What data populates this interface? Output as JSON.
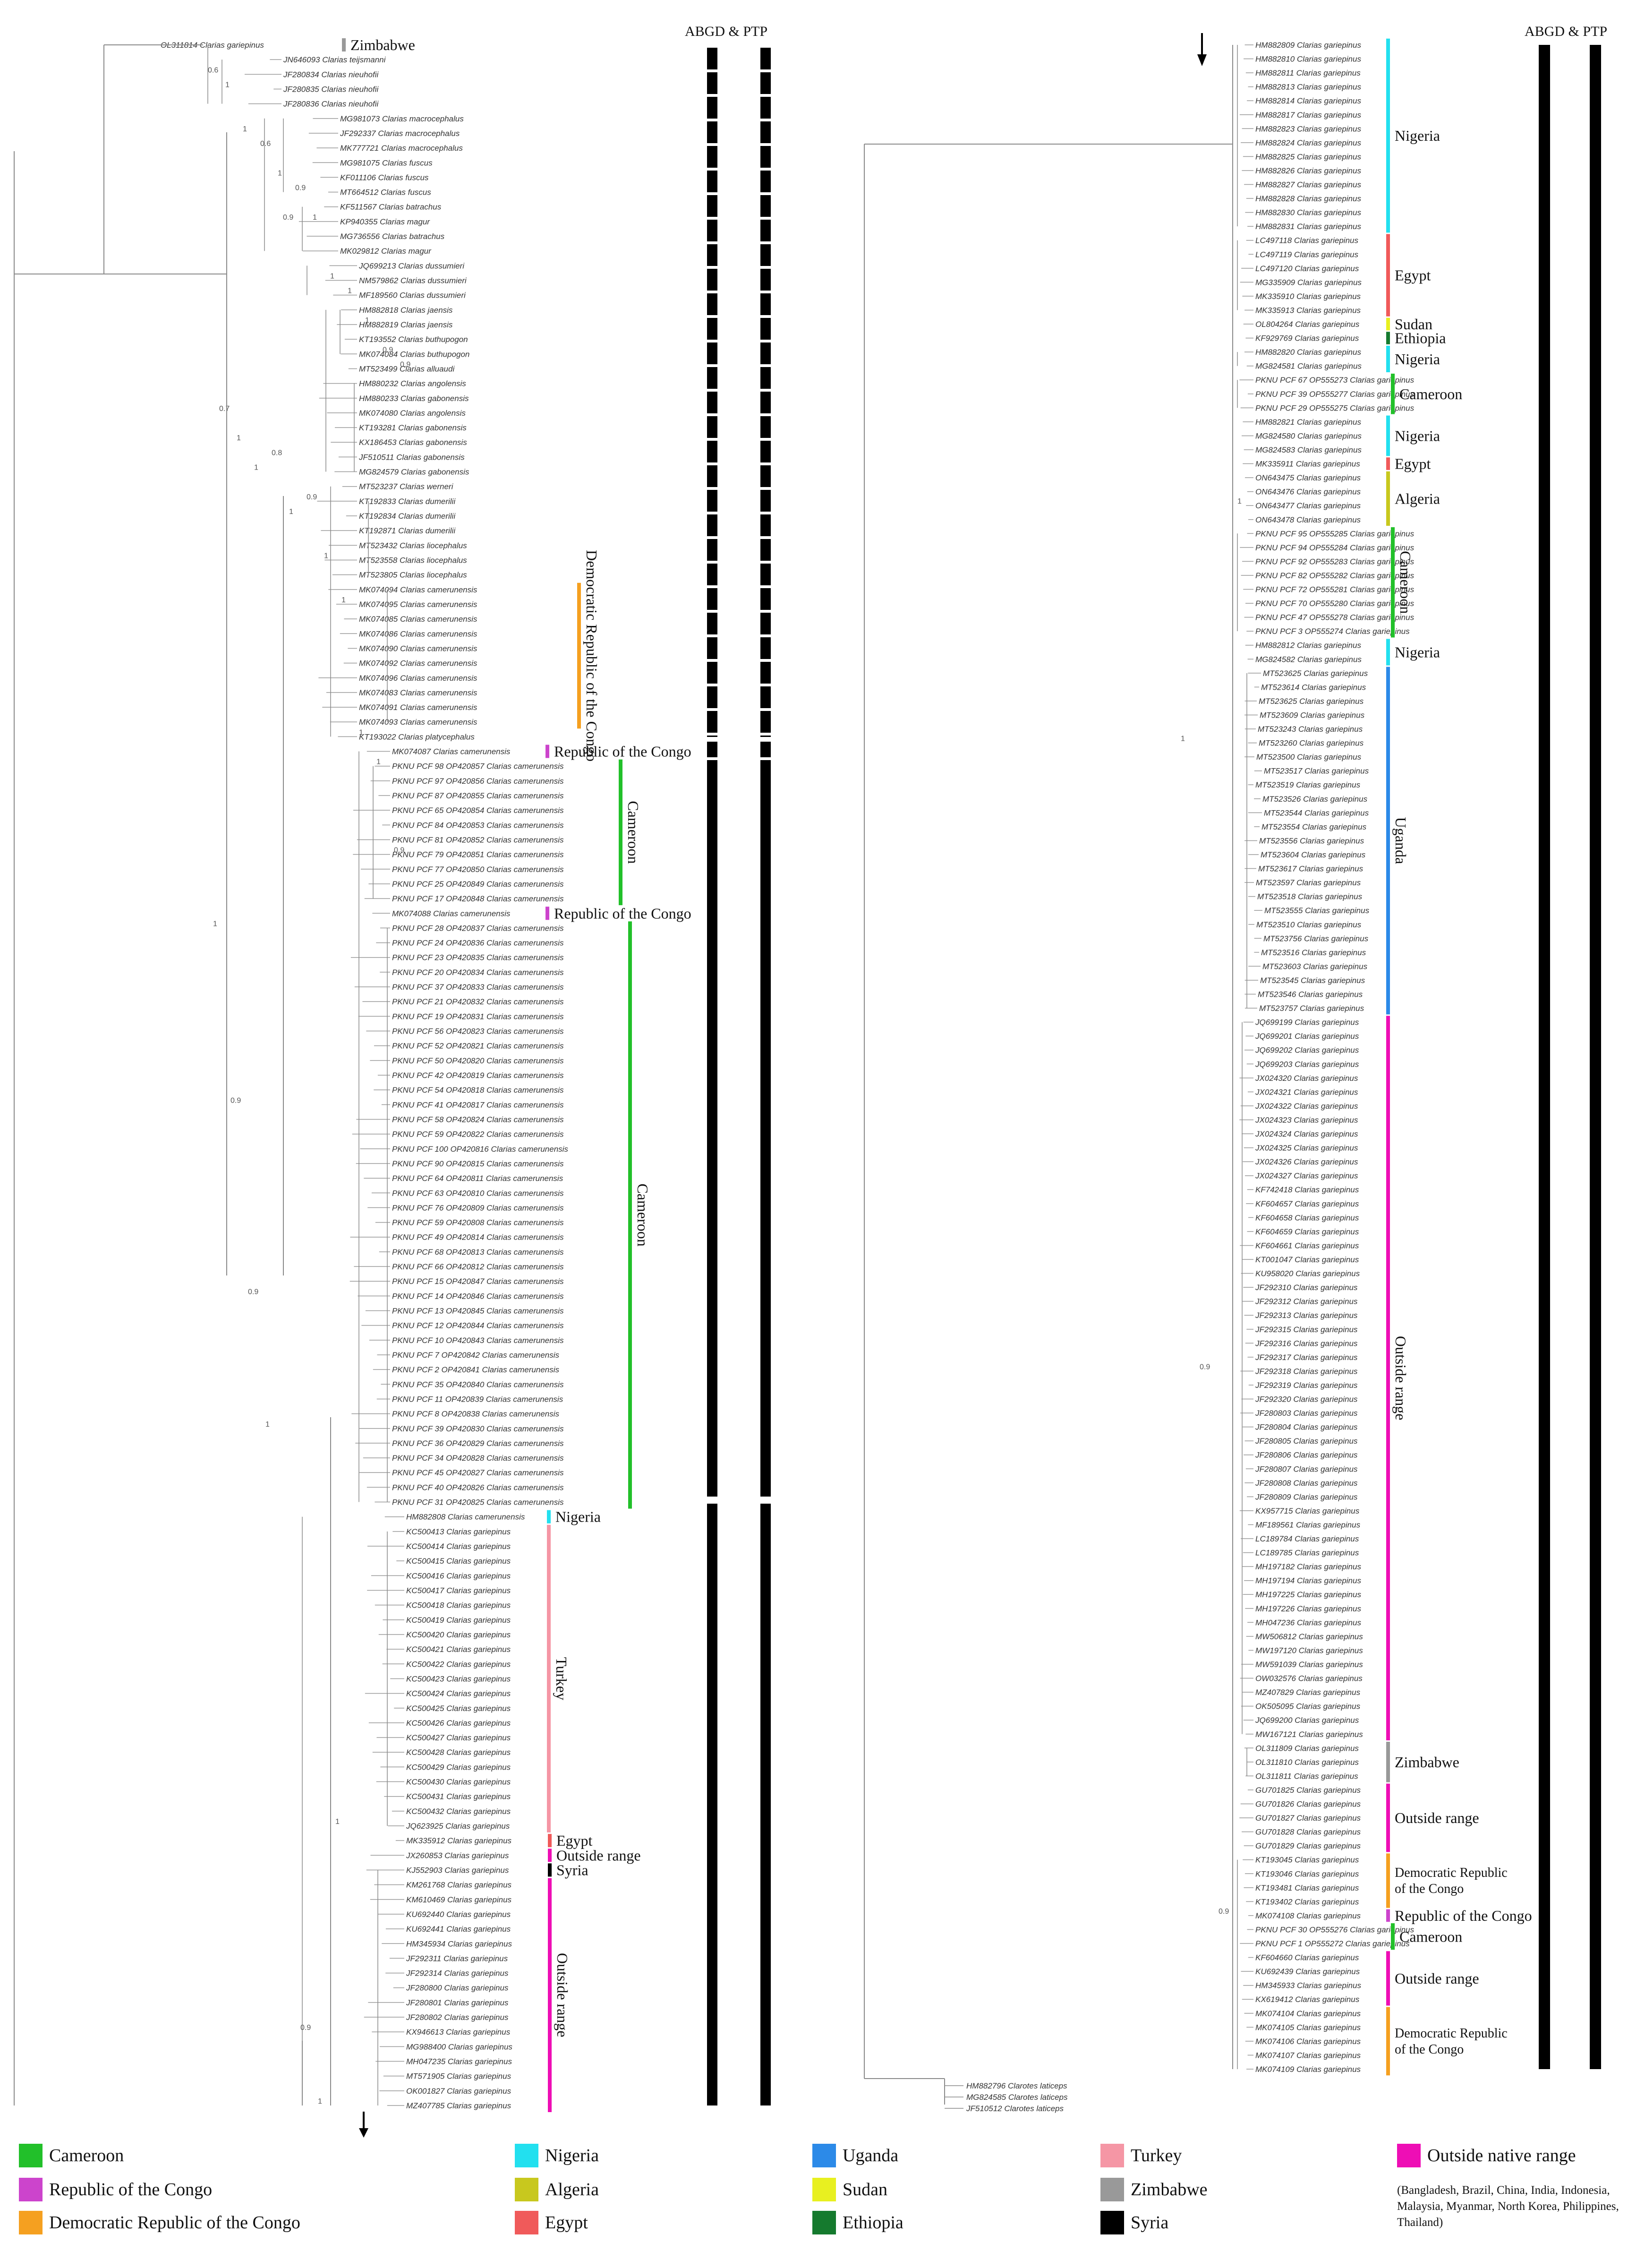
{
  "header": {
    "left": "ABGD & PTP",
    "right": "ABGD & PTP"
  },
  "colors": {
    "Cameroon": "#22c02a",
    "Republic of the Congo": "#cc44cc",
    "Democratic Republic of the Congo": "#f5a020",
    "Nigeria": "#22e0ef",
    "Algeria": "#c8c81e",
    "Egypt": "#f05a5a",
    "Uganda": "#2c8ae8",
    "Sudan": "#e8f020",
    "Ethiopia": "#157a2e",
    "Turkey": "#f596a5",
    "Zimbabwe": "#999999",
    "Syria": "#000000",
    "Outside range": "#ee0eb5"
  },
  "legend": {
    "items": [
      {
        "label": "Cameroon",
        "color": "#22c02a"
      },
      {
        "label": "Republic of the Congo",
        "color": "#cc44cc"
      },
      {
        "label": "Democratic Republic of the Congo",
        "color": "#f5a020"
      },
      {
        "label": "Nigeria",
        "color": "#22e0ef"
      },
      {
        "label": "Algeria",
        "color": "#c8c81e"
      },
      {
        "label": "Egypt",
        "color": "#f05a5a"
      },
      {
        "label": "Uganda",
        "color": "#2c8ae8"
      },
      {
        "label": "Sudan",
        "color": "#e8f020"
      },
      {
        "label": "Ethiopia",
        "color": "#157a2e"
      },
      {
        "label": "Turkey",
        "color": "#f596a5"
      },
      {
        "label": "Zimbabwe",
        "color": "#999999"
      },
      {
        "label": "Syria",
        "color": "#000000"
      },
      {
        "label": "Outside native range",
        "color": "#ee0eb5"
      }
    ],
    "note": "(Bangladesh, Brazil, China, India, Indonesia, Malaysia, Myanmar, North Korea, Philippines, Thailand)"
  },
  "left_panel": {
    "tips": [
      "OL311814 Clarias gariepinus",
      "JN646093 Clarias teijsmanni",
      "JF280834 Clarias nieuhofii",
      "JF280835 Clarias nieuhofii",
      "JF280836 Clarias nieuhofii",
      "MG981073 Clarias macrocephalus",
      "JF292337 Clarias macrocephalus",
      "MK777721 Clarias macrocephalus",
      "MG981075 Clarias fuscus",
      "KF011106 Clarias fuscus",
      "MT664512 Clarias fuscus",
      "KF511567 Clarias batrachus",
      "KP940355 Clarias magur",
      "MG736556 Clarias batrachus",
      "MK029812 Clarias magur",
      "JQ699213 Clarias dussumieri",
      "NM579862 Clarias dussumieri",
      "MF189560 Clarias dussumieri",
      "HM882818 Clarias jaensis",
      "HM882819 Clarias jaensis",
      "KT193552 Clarias buthupogon",
      "MK074084 Clarias buthupogon",
      "MT523499 Clarias alluaudi",
      "HM880232 Clarias angolensis",
      "HM880233 Clarias gabonensis",
      "MK074080 Clarias angolensis",
      "KT193281 Clarias gabonensis",
      "KX186453 Clarias gabonensis",
      "JF510511 Clarias gabonensis",
      "MG824579 Clarias gabonensis",
      "MT523237 Clarias werneri",
      "KT192833 Clarias dumerilii",
      "KT192834 Clarias dumerilii",
      "KT192871 Clarias dumerilii",
      "MT523432 Clarias liocephalus",
      "MT523558 Clarias liocephalus",
      "MT523805 Clarias liocephalus",
      "MK074094 Clarias camerunensis",
      "MK074095 Clarias camerunensis",
      "MK074085 Clarias camerunensis",
      "MK074086 Clarias camerunensis",
      "MK074090 Clarias camerunensis",
      "MK074092 Clarias camerunensis",
      "MK074096 Clarias camerunensis",
      "MK074083 Clarias camerunensis",
      "MK074091 Clarias camerunensis",
      "MK074093 Clarias camerunensis",
      "KT193022 Clarias platycephalus",
      "MK074087 Clarias camerunensis",
      "PKNU PCF 98 OP420857 Clarias camerunensis",
      "PKNU PCF 97 OP420856 Clarias camerunensis",
      "PKNU PCF 87 OP420855 Clarias camerunensis",
      "PKNU PCF 65 OP420854 Clarias camerunensis",
      "PKNU PCF 84 OP420853 Clarias camerunensis",
      "PKNU PCF 81 OP420852 Clarias camerunensis",
      "PKNU PCF 79 OP420851 Clarias camerunensis",
      "PKNU PCF 77 OP420850 Clarias camerunensis",
      "PKNU PCF 25 OP420849 Clarias camerunensis",
      "PKNU PCF 17 OP420848 Clarias camerunensis",
      "MK074088 Clarias camerunensis",
      "PKNU PCF 28 OP420837 Clarias camerunensis",
      "PKNU PCF 24 OP420836 Clarias camerunensis",
      "PKNU PCF 23 OP420835 Clarias camerunensis",
      "PKNU PCF 20 OP420834 Clarias camerunensis",
      "PKNU PCF 37 OP420833 Clarias camerunensis",
      "PKNU PCF 21 OP420832 Clarias camerunensis",
      "PKNU PCF 19 OP420831 Clarias camerunensis",
      "PKNU PCF 56 OP420823 Clarias camerunensis",
      "PKNU PCF 52 OP420821 Clarias camerunensis",
      "PKNU PCF 50 OP420820 Clarias camerunensis",
      "PKNU PCF 42 OP420819 Clarias camerunensis",
      "PKNU PCF 54 OP420818 Clarias camerunensis",
      "PKNU PCF 41 OP420817 Clarias camerunensis",
      "PKNU PCF 58 OP420824 Clarias camerunensis",
      "PKNU PCF 59 OP420822 Clarias camerunensis",
      "PKNU PCF 100 OP420816 Clarias camerunensis",
      "PKNU PCF 90 OP420815 Clarias camerunensis",
      "PKNU PCF 64 OP420811 Clarias camerunensis",
      "PKNU PCF 63 OP420810 Clarias camerunensis",
      "PKNU PCF 76 OP420809 Clarias camerunensis",
      "PKNU PCF 59 OP420808 Clarias camerunensis",
      "PKNU PCF 49 OP420814 Clarias camerunensis",
      "PKNU PCF 68 OP420813 Clarias camerunensis",
      "PKNU PCF 66 OP420812 Clarias camerunensis",
      "PKNU PCF 15 OP420847 Clarias camerunensis",
      "PKNU PCF 14 OP420846 Clarias camerunensis",
      "PKNU PCF 13 OP420845 Clarias camerunensis",
      "PKNU PCF 12 OP420844 Clarias camerunensis",
      "PKNU PCF 10 OP420843 Clarias camerunensis",
      "PKNU PCF 7 OP420842 Clarias camerunensis",
      "PKNU PCF 2 OP420841 Clarias camerunensis",
      "PKNU PCF 35 OP420840 Clarias camerunensis",
      "PKNU PCF 11 OP420839 Clarias camerunensis",
      "PKNU PCF 8 OP420838 Clarias camerunensis",
      "PKNU PCF 39 OP420830 Clarias camerunensis",
      "PKNU PCF 36 OP420829 Clarias camerunensis",
      "PKNU PCF 34 OP420828 Clarias camerunensis",
      "PKNU PCF 45 OP420827 Clarias camerunensis",
      "PKNU PCF 40 OP420826 Clarias camerunensis",
      "PKNU PCF 31 OP420825 Clarias camerunensis",
      "HM882808 Clarias camerunensis",
      "KC500413 Clarias gariepinus",
      "KC500414 Clarias gariepinus",
      "KC500415 Clarias gariepinus",
      "KC500416 Clarias gariepinus",
      "KC500417 Clarias gariepinus",
      "KC500418 Clarias gariepinus",
      "KC500419 Clarias gariepinus",
      "KC500420 Clarias gariepinus",
      "KC500421 Clarias gariepinus",
      "KC500422 Clarias gariepinus",
      "KC500423 Clarias gariepinus",
      "KC500424 Clarias gariepinus",
      "KC500425 Clarias gariepinus",
      "KC500426 Clarias gariepinus",
      "KC500427 Clarias gariepinus",
      "KC500428 Clarias gariepinus",
      "KC500429 Clarias gariepinus",
      "KC500430 Clarias gariepinus",
      "KC500431 Clarias gariepinus",
      "KC500432 Clarias gariepinus",
      "JQ623925 Clarias gariepinus",
      "MK335912 Clarias gariepinus",
      "JX260853 Clarias gariepinus",
      "KJ552903 Clarias gariepinus",
      "KM261768 Clarias gariepinus",
      "KM610469 Clarias gariepinus",
      "KU692440 Clarias gariepinus",
      "KU692441 Clarias gariepinus",
      "HM345934 Clarias gariepinus",
      "JF292311 Clarias gariepinus",
      "JF292314 Clarias gariepinus",
      "JF280800 Clarias gariepinus",
      "JF280801 Clarias gariepinus",
      "JF280802 Clarias gariepinus",
      "KX946613 Clarias gariepinus",
      "MG988400 Clarias gariepinus",
      "MH047235 Clarias gariepinus",
      "MT571905 Clarias gariepinus",
      "OK001827 Clarias gariepinus",
      "MZ407785 Clarias gariepinus"
    ],
    "regions": [
      {
        "label": "Zimbabwe",
        "start": 0,
        "end": 0,
        "key": "Zimbabwe",
        "bar": false
      },
      {
        "label": "Democratic Republic of the Congo",
        "start": 37,
        "end": 46,
        "key": "Democratic Republic of the Congo",
        "vertical": true
      },
      {
        "label": "Republic of the Congo",
        "start": 48,
        "end": 48,
        "key": "Republic of the Congo"
      },
      {
        "label": "Cameroon",
        "start": 49,
        "end": 58,
        "key": "Cameroon",
        "vertical": true
      },
      {
        "label": "Republic of the Congo",
        "start": 59,
        "end": 59,
        "key": "Republic of the Congo"
      },
      {
        "label": "Cameroon",
        "start": 60,
        "end": 99,
        "key": "Cameroon",
        "vertical": true
      },
      {
        "label": "Nigeria",
        "start": 100,
        "end": 100,
        "key": "Nigeria"
      },
      {
        "label": "Turkey",
        "start": 101,
        "end": 121,
        "key": "Turkey",
        "vertical": true
      },
      {
        "label": "Egypt",
        "start": 122,
        "end": 122,
        "key": "Egypt"
      },
      {
        "label": "Outside range",
        "start": 123,
        "end": 123,
        "key": "Outside range"
      },
      {
        "label": "Syria",
        "start": 124,
        "end": 124,
        "key": "Syria"
      },
      {
        "label": "Outside range",
        "start": 125,
        "end": 140,
        "key": "Outside range",
        "vertical": true
      }
    ],
    "support": [
      {
        "tip": 2,
        "value": "0.6"
      },
      {
        "tip": 3,
        "value": "1"
      },
      {
        "tip": 6,
        "value": "1"
      },
      {
        "tip": 7,
        "value": "0.6"
      },
      {
        "tip": 9,
        "value": "1"
      },
      {
        "tip": 10,
        "value": "0.9"
      },
      {
        "tip": 12,
        "value": "1"
      },
      {
        "tip": 16,
        "value": "1"
      },
      {
        "tip": 17,
        "value": "1"
      },
      {
        "tip": 19,
        "value": "1"
      },
      {
        "tip": 21,
        "value": "0.9"
      },
      {
        "tip": 22,
        "value": "0.9"
      },
      {
        "tip": 25,
        "value": "0.7"
      },
      {
        "tip": 27,
        "value": "1"
      },
      {
        "tip": 29,
        "value": "1"
      },
      {
        "tip": 28,
        "value": "0.8"
      },
      {
        "tip": 32,
        "value": "1"
      },
      {
        "tip": 31,
        "value": "0.9"
      },
      {
        "tip": 35,
        "value": "1"
      },
      {
        "tip": 38,
        "value": "1"
      },
      {
        "tip": 47,
        "value": "1"
      },
      {
        "tip": 49,
        "value": "1"
      },
      {
        "tip": 55,
        "value": "0.9"
      },
      {
        "tip": 60,
        "value": "1"
      },
      {
        "tip": 72,
        "value": "0.9"
      },
      {
        "tip": 85,
        "value": "0.9"
      },
      {
        "tip": 94,
        "value": "1"
      },
      {
        "tip": 12,
        "value": "0.9"
      },
      {
        "tip": 135,
        "value": "0.9"
      },
      {
        "tip": 140,
        "value": "1"
      },
      {
        "tip": 121,
        "value": "1"
      }
    ]
  },
  "right_panel": {
    "tips": [
      "HM882809 Clarias gariepinus",
      "HM882810 Clarias gariepinus",
      "HM882811 Clarias gariepinus",
      "HM882813 Clarias gariepinus",
      "HM882814 Clarias gariepinus",
      "HM882817 Clarias gariepinus",
      "HM882823 Clarias gariepinus",
      "HM882824 Clarias gariepinus",
      "HM882825 Clarias gariepinus",
      "HM882826 Clarias gariepinus",
      "HM882827 Clarias gariepinus",
      "HM882828 Clarias gariepinus",
      "HM882830 Clarias gariepinus",
      "HM882831 Clarias gariepinus",
      "LC497118 Clarias gariepinus",
      "LC497119 Clarias gariepinus",
      "LC497120 Clarias gariepinus",
      "MG335909 Clarias gariepinus",
      "MK335910 Clarias gariepinus",
      "MK335913 Clarias gariepinus",
      "OL804264 Clarias gariepinus",
      "KF929769 Clarias gariepinus",
      "HM882820 Clarias gariepinus",
      "MG824581 Clarias gariepinus",
      "PKNU PCF 67 OP555273 Clarias gariepinus",
      "PKNU PCF 39 OP555277 Clarias gariepinus",
      "PKNU PCF 29 OP555275 Clarias gariepinus",
      "HM882821 Clarias gariepinus",
      "MG824580 Clarias gariepinus",
      "MG824583 Clarias gariepinus",
      "MK335911 Clarias gariepinus",
      "ON643475 Clarias gariepinus",
      "ON643476 Clarias gariepinus",
      "ON643477 Clarias gariepinus",
      "ON643478 Clarias gariepinus",
      "PKNU PCF 95 OP555285 Clarias gariepinus",
      "PKNU PCF 94 OP555284 Clarias gariepinus",
      "PKNU PCF 92 OP555283 Clarias gariepinus",
      "PKNU PCF 82 OP555282 Clarias gariepinus",
      "PKNU PCF 72 OP555281 Clarias gariepinus",
      "PKNU PCF 70 OP555280 Clarias gariepinus",
      "PKNU PCF 47 OP555278 Clarias gariepinus",
      "PKNU PCF 3 OP555274 Clarias gariepinus",
      "HM882812 Clarias gariepinus",
      "MG824582 Clarias gariepinus",
      "MT523625 Clarias gariepinus",
      "MT523614 Clarias gariepinus",
      "MT523625 Clarias gariepinus",
      "MT523609 Clarias gariepinus",
      "MT523243 Clarias gariepinus",
      "MT523260 Clarias gariepinus",
      "MT523500 Clarias gariepinus",
      "MT523517 Clarias gariepinus",
      "MT523519 Clarias gariepinus",
      "MT523526 Clarias gariepinus",
      "MT523544 Clarias gariepinus",
      "MT523554 Clarias gariepinus",
      "MT523556 Clarias gariepinus",
      "MT523604 Clarias gariepinus",
      "MT523617 Clarias gariepinus",
      "MT523597 Clarias gariepinus",
      "MT523518 Clarias gariepinus",
      "MT523555 Clarias gariepinus",
      "MT523510 Clarias gariepinus",
      "MT523756 Clarias gariepinus",
      "MT523516 Clarias gariepinus",
      "MT523603 Clarias gariepinus",
      "MT523545 Clarias gariepinus",
      "MT523546 Clarias gariepinus",
      "MT523757 Clarias gariepinus",
      "JQ699199 Clarias gariepinus",
      "JQ699201 Clarias gariepinus",
      "JQ699202 Clarias gariepinus",
      "JQ699203 Clarias gariepinus",
      "JX024320 Clarias gariepinus",
      "JX024321 Clarias gariepinus",
      "JX024322 Clarias gariepinus",
      "JX024323 Clarias gariepinus",
      "JX024324 Clarias gariepinus",
      "JX024325 Clarias gariepinus",
      "JX024326 Clarias gariepinus",
      "JX024327 Clarias gariepinus",
      "KF742418 Clarias gariepinus",
      "KF604657 Clarias gariepinus",
      "KF604658 Clarias gariepinus",
      "KF604659 Clarias gariepinus",
      "KF604661 Clarias gariepinus",
      "KT001047 Clarias gariepinus",
      "KU958020 Clarias gariepinus",
      "JF292310 Clarias gariepinus",
      "JF292312 Clarias gariepinus",
      "JF292313 Clarias gariepinus",
      "JF292315 Clarias gariepinus",
      "JF292316 Clarias gariepinus",
      "JF292317 Clarias gariepinus",
      "JF292318 Clarias gariepinus",
      "JF292319 Clarias gariepinus",
      "JF292320 Clarias gariepinus",
      "JF280803 Clarias gariepinus",
      "JF280804 Clarias gariepinus",
      "JF280805 Clarias gariepinus",
      "JF280806 Clarias gariepinus",
      "JF280807 Clarias gariepinus",
      "JF280808 Clarias gariepinus",
      "JF280809 Clarias gariepinus",
      "KX957715 Clarias gariepinus",
      "MF189561 Clarias gariepinus",
      "LC189784 Clarias gariepinus",
      "LC189785 Clarias gariepinus",
      "MH197182 Clarias gariepinus",
      "MH197194 Clarias gariepinus",
      "MH197225 Clarias gariepinus",
      "MH197226 Clarias gariepinus",
      "MH047236 Clarias gariepinus",
      "MW506812 Clarias gariepinus",
      "MW197120 Clarias gariepinus",
      "MW591039 Clarias gariepinus",
      "OW032576 Clarias gariepinus",
      "MZ407829 Clarias gariepinus",
      "OK505095 Clarias gariepinus",
      "JQ699200 Clarias gariepinus",
      "MW167121 Clarias gariepinus",
      "OL311809 Clarias gariepinus",
      "OL311810 Clarias gariepinus",
      "OL311811 Clarias gariepinus",
      "GU701825 Clarias gariepinus",
      "GU701826 Clarias gariepinus",
      "GU701827 Clarias gariepinus",
      "GU701828 Clarias gariepinus",
      "GU701829 Clarias gariepinus",
      "KT193045 Clarias gariepinus",
      "KT193046 Clarias gariepinus",
      "KT193481 Clarias gariepinus",
      "KT193402 Clarias gariepinus",
      "MK074108 Clarias gariepinus",
      "PKNU PCF 30 OP555276 Clarias gariepinus",
      "PKNU PCF 1 OP555272 Clarias gariepinus",
      "KF604660 Clarias gariepinus",
      "KU692439 Clarias gariepinus",
      "HM345933 Clarias gariepinus",
      "KX619412 Clarias gariepinus",
      "MK074104 Clarias gariepinus",
      "MK074105 Clarias gariepinus",
      "MK074106 Clarias gariepinus",
      "MK074107 Clarias gariepinus",
      "MK074109 Clarias gariepinus"
    ],
    "regions": [
      {
        "label": "Nigeria",
        "start": 0,
        "end": 13,
        "key": "Nigeria"
      },
      {
        "label": "Egypt",
        "start": 14,
        "end": 19,
        "key": "Egypt"
      },
      {
        "label": "Sudan",
        "start": 20,
        "end": 20,
        "key": "Sudan"
      },
      {
        "label": "Ethiopia",
        "start": 21,
        "end": 21,
        "key": "Ethiopia"
      },
      {
        "label": "Nigeria",
        "start": 22,
        "end": 23,
        "key": "Nigeria"
      },
      {
        "label": "Cameroon",
        "start": 24,
        "end": 26,
        "key": "Cameroon"
      },
      {
        "label": "Nigeria",
        "start": 27,
        "end": 29,
        "key": "Nigeria"
      },
      {
        "label": "Egypt",
        "start": 30,
        "end": 30,
        "key": "Egypt"
      },
      {
        "label": "Algeria",
        "start": 31,
        "end": 34,
        "key": "Algeria"
      },
      {
        "label": "Cameroon",
        "start": 35,
        "end": 42,
        "key": "Cameroon",
        "vertical": true
      },
      {
        "label": "Nigeria",
        "start": 43,
        "end": 44,
        "key": "Nigeria"
      },
      {
        "label": "Uganda",
        "start": 45,
        "end": 69,
        "key": "Uganda",
        "vertical": true
      },
      {
        "label": "Outside range",
        "start": 70,
        "end": 121,
        "key": "Outside range",
        "vertical": true
      },
      {
        "label": "Zimbabwe",
        "start": 122,
        "end": 124,
        "key": "Zimbabwe"
      },
      {
        "label": "Outside range",
        "start": 125,
        "end": 129,
        "key": "Outside range"
      },
      {
        "label": "Democratic Republic of the Congo",
        "start": 130,
        "end": 133,
        "key": "Democratic Republic of the Congo",
        "twoLine": [
          "Democratic Republic",
          "of the Congo"
        ]
      },
      {
        "label": "Republic of the Congo",
        "start": 134,
        "end": 134,
        "key": "Republic of the Congo"
      },
      {
        "label": "Cameroon",
        "start": 135,
        "end": 136,
        "key": "Cameroon"
      },
      {
        "label": "Outside range",
        "start": 137,
        "end": 140,
        "key": "Outside range"
      },
      {
        "label": "Democratic Republic of the Congo",
        "start": 141,
        "end": 145,
        "key": "Democratic Republic of the Congo",
        "twoLine": [
          "Democratic Republic",
          "of the Congo"
        ]
      }
    ],
    "outgroup": [
      "HM882796 Clarotes laticeps",
      "MG824585 Clarotes laticeps",
      "JF510512 Clarotes laticeps"
    ],
    "support": [
      {
        "tip": 50,
        "value": "1"
      },
      {
        "tip": 95,
        "value": "0.9"
      },
      {
        "tip": 134,
        "value": "0.9"
      },
      {
        "tip": 33,
        "value": "1"
      }
    ]
  }
}
